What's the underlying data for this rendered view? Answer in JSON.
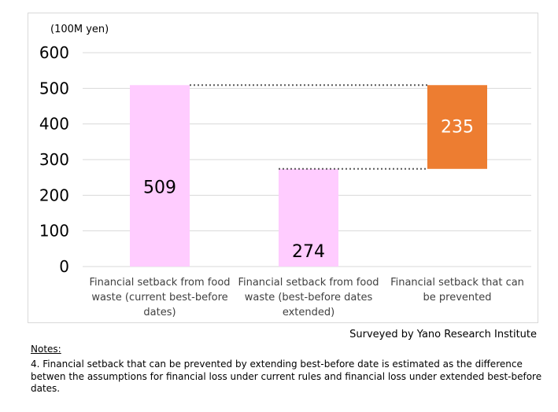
{
  "chart_data": {
    "type": "bar",
    "subtype": "waterfall",
    "ylabel": "(100M yen)",
    "ylim": [
      0,
      600
    ],
    "yticks": [
      0,
      100,
      200,
      300,
      400,
      500,
      600
    ],
    "grid": true,
    "categories": [
      "Financial setback from food waste (current best-before dates)",
      "Financial setback from food waste (best-before dates extended)",
      "Financial setback that can be prevented"
    ],
    "bars": [
      {
        "base": 0,
        "value": 509,
        "label": "509",
        "color": "#FFCCFF"
      },
      {
        "base": 0,
        "value": 274,
        "label": "274",
        "color": "#FFCCFF"
      },
      {
        "base": 274,
        "value": 235,
        "label": "235",
        "color": "#ED7D31"
      }
    ],
    "connectors": [
      509,
      274
    ]
  },
  "source": "Surveyed by Yano Research Institute",
  "notes_heading": "Notes:",
  "note": "4.  Financial setback that can be prevented by extending best-before date is estimated as the difference betwen the assumptions for financial loss under current rules  and financial loss under extended best-before dates."
}
